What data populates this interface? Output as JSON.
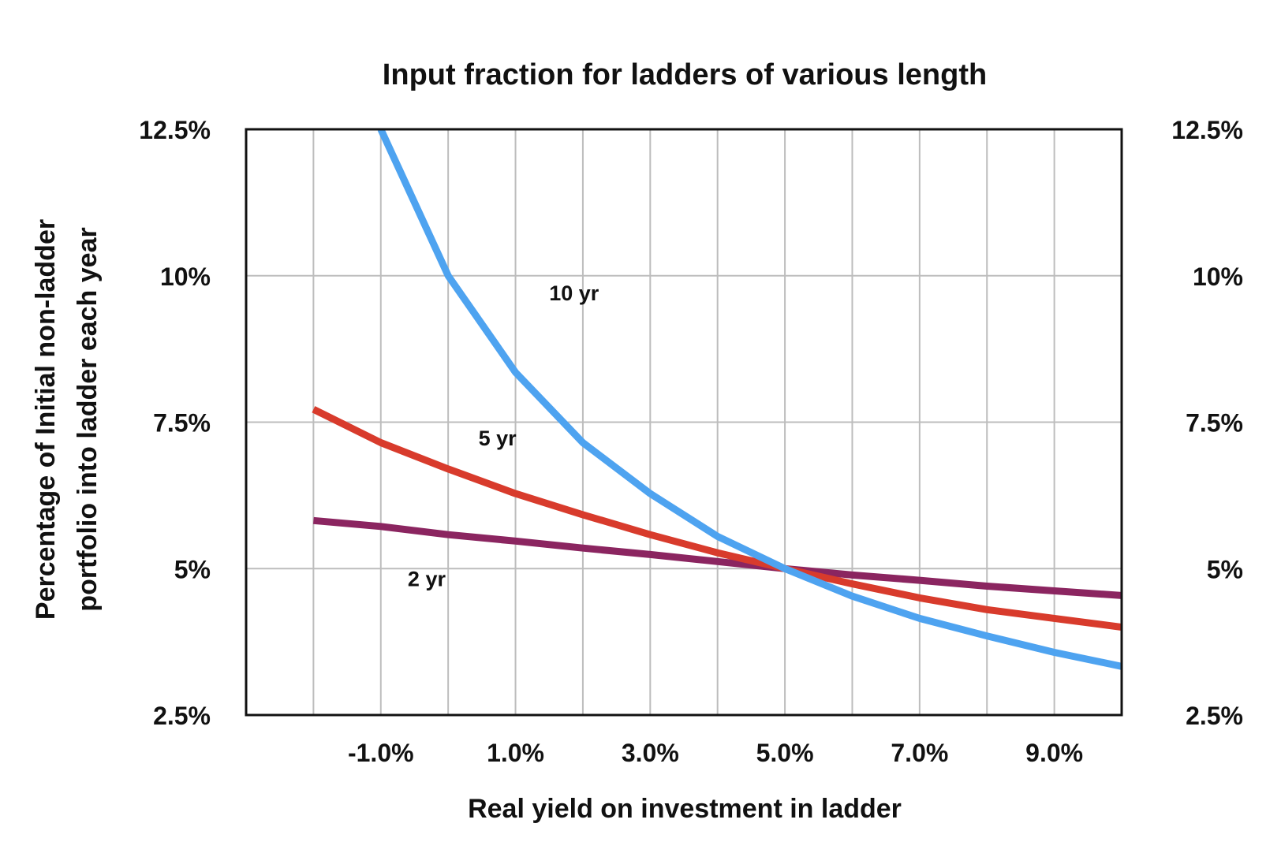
{
  "chart_data": {
    "type": "line",
    "title": "Input fraction for ladders of various length",
    "xlabel": "Real yield on investment in ladder",
    "ylabel_lines": [
      "Percentage of Initial non-ladder",
      "portfolio into ladder each year"
    ],
    "xlim": [
      -3.0,
      10.0
    ],
    "ylim": [
      2.5,
      12.5
    ],
    "x_ticks": [
      -1.0,
      1.0,
      3.0,
      5.0,
      7.0,
      9.0
    ],
    "x_tick_labels": [
      "-1.0%",
      "1.0%",
      "3.0%",
      "5.0%",
      "7.0%",
      "9.0%"
    ],
    "y_ticks": [
      2.5,
      5,
      7.5,
      10,
      12.5
    ],
    "y_tick_labels": [
      "2.5%",
      "5%",
      "7.5%",
      "10%",
      "12.5%"
    ],
    "y_tick_labels_right": [
      "2.5%",
      "5%",
      "7.5%",
      "10%",
      "12.5%"
    ],
    "x_gridlines": [
      -2,
      -1,
      0,
      1,
      2,
      3,
      4,
      5,
      6,
      7,
      8,
      9
    ],
    "grid": true,
    "series": [
      {
        "name": "2 yr",
        "color": "#8b2560",
        "x": [
          -2,
          -1,
          0,
          1,
          2,
          3,
          4,
          5,
          6,
          7,
          8,
          9,
          10
        ],
        "y": [
          5.82,
          5.72,
          5.58,
          5.47,
          5.35,
          5.24,
          5.12,
          5.0,
          4.89,
          4.8,
          4.7,
          4.62,
          4.54
        ]
      },
      {
        "name": "5 yr",
        "color": "#d83b2c",
        "x": [
          -2,
          -1,
          0,
          1,
          2,
          3,
          4,
          5,
          6,
          7,
          8,
          9,
          10
        ],
        "y": [
          7.72,
          7.15,
          6.7,
          6.28,
          5.92,
          5.58,
          5.27,
          5.0,
          4.74,
          4.5,
          4.3,
          4.15,
          4.0
        ]
      },
      {
        "name": "10 yr",
        "color": "#4ea3f0",
        "x": [
          -1,
          0,
          1,
          2,
          3,
          4,
          5,
          6,
          7,
          8,
          9,
          10
        ],
        "y": [
          12.5,
          10.0,
          8.35,
          7.15,
          6.28,
          5.55,
          5.0,
          4.53,
          4.15,
          3.85,
          3.57,
          3.33
        ]
      }
    ],
    "series_label_positions": [
      {
        "name": "2 yr",
        "x": -0.6,
        "y": 4.7
      },
      {
        "name": "5 yr",
        "x": 0.45,
        "y": 7.1
      },
      {
        "name": "10 yr",
        "x": 1.5,
        "y": 9.58
      }
    ]
  }
}
